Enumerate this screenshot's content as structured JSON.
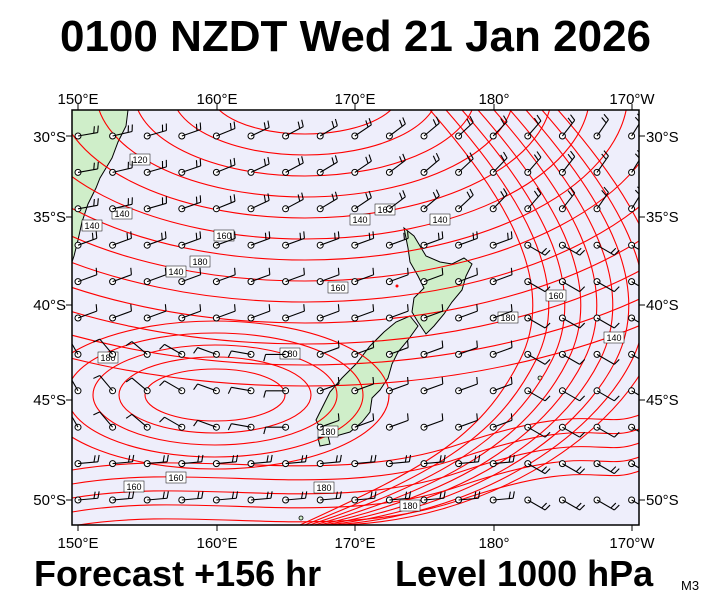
{
  "header": {
    "title": "0100 NZDT Wed 21 Jan 2026"
  },
  "footer": {
    "forecast": "Forecast +156 hr",
    "level": "Level 1000 hPa",
    "model": "M3"
  },
  "map": {
    "lon_labels": [
      "150°E",
      "160°E",
      "170°E",
      "180°",
      "170°W"
    ],
    "lat_labels": [
      "30°S",
      "35°S",
      "40°S",
      "45°S",
      "50°S"
    ],
    "contour_labels": [
      "140",
      "160",
      "160",
      "180",
      "120",
      "140",
      "160",
      "180",
      "180",
      "180",
      "160",
      "180",
      "140",
      "160",
      "180",
      "140",
      "180",
      "160",
      "140",
      "140"
    ],
    "colors": {
      "ocean": "#eeeefb",
      "land": "#cfeec9",
      "contour": "#ff0000",
      "wind": "#000000"
    }
  }
}
